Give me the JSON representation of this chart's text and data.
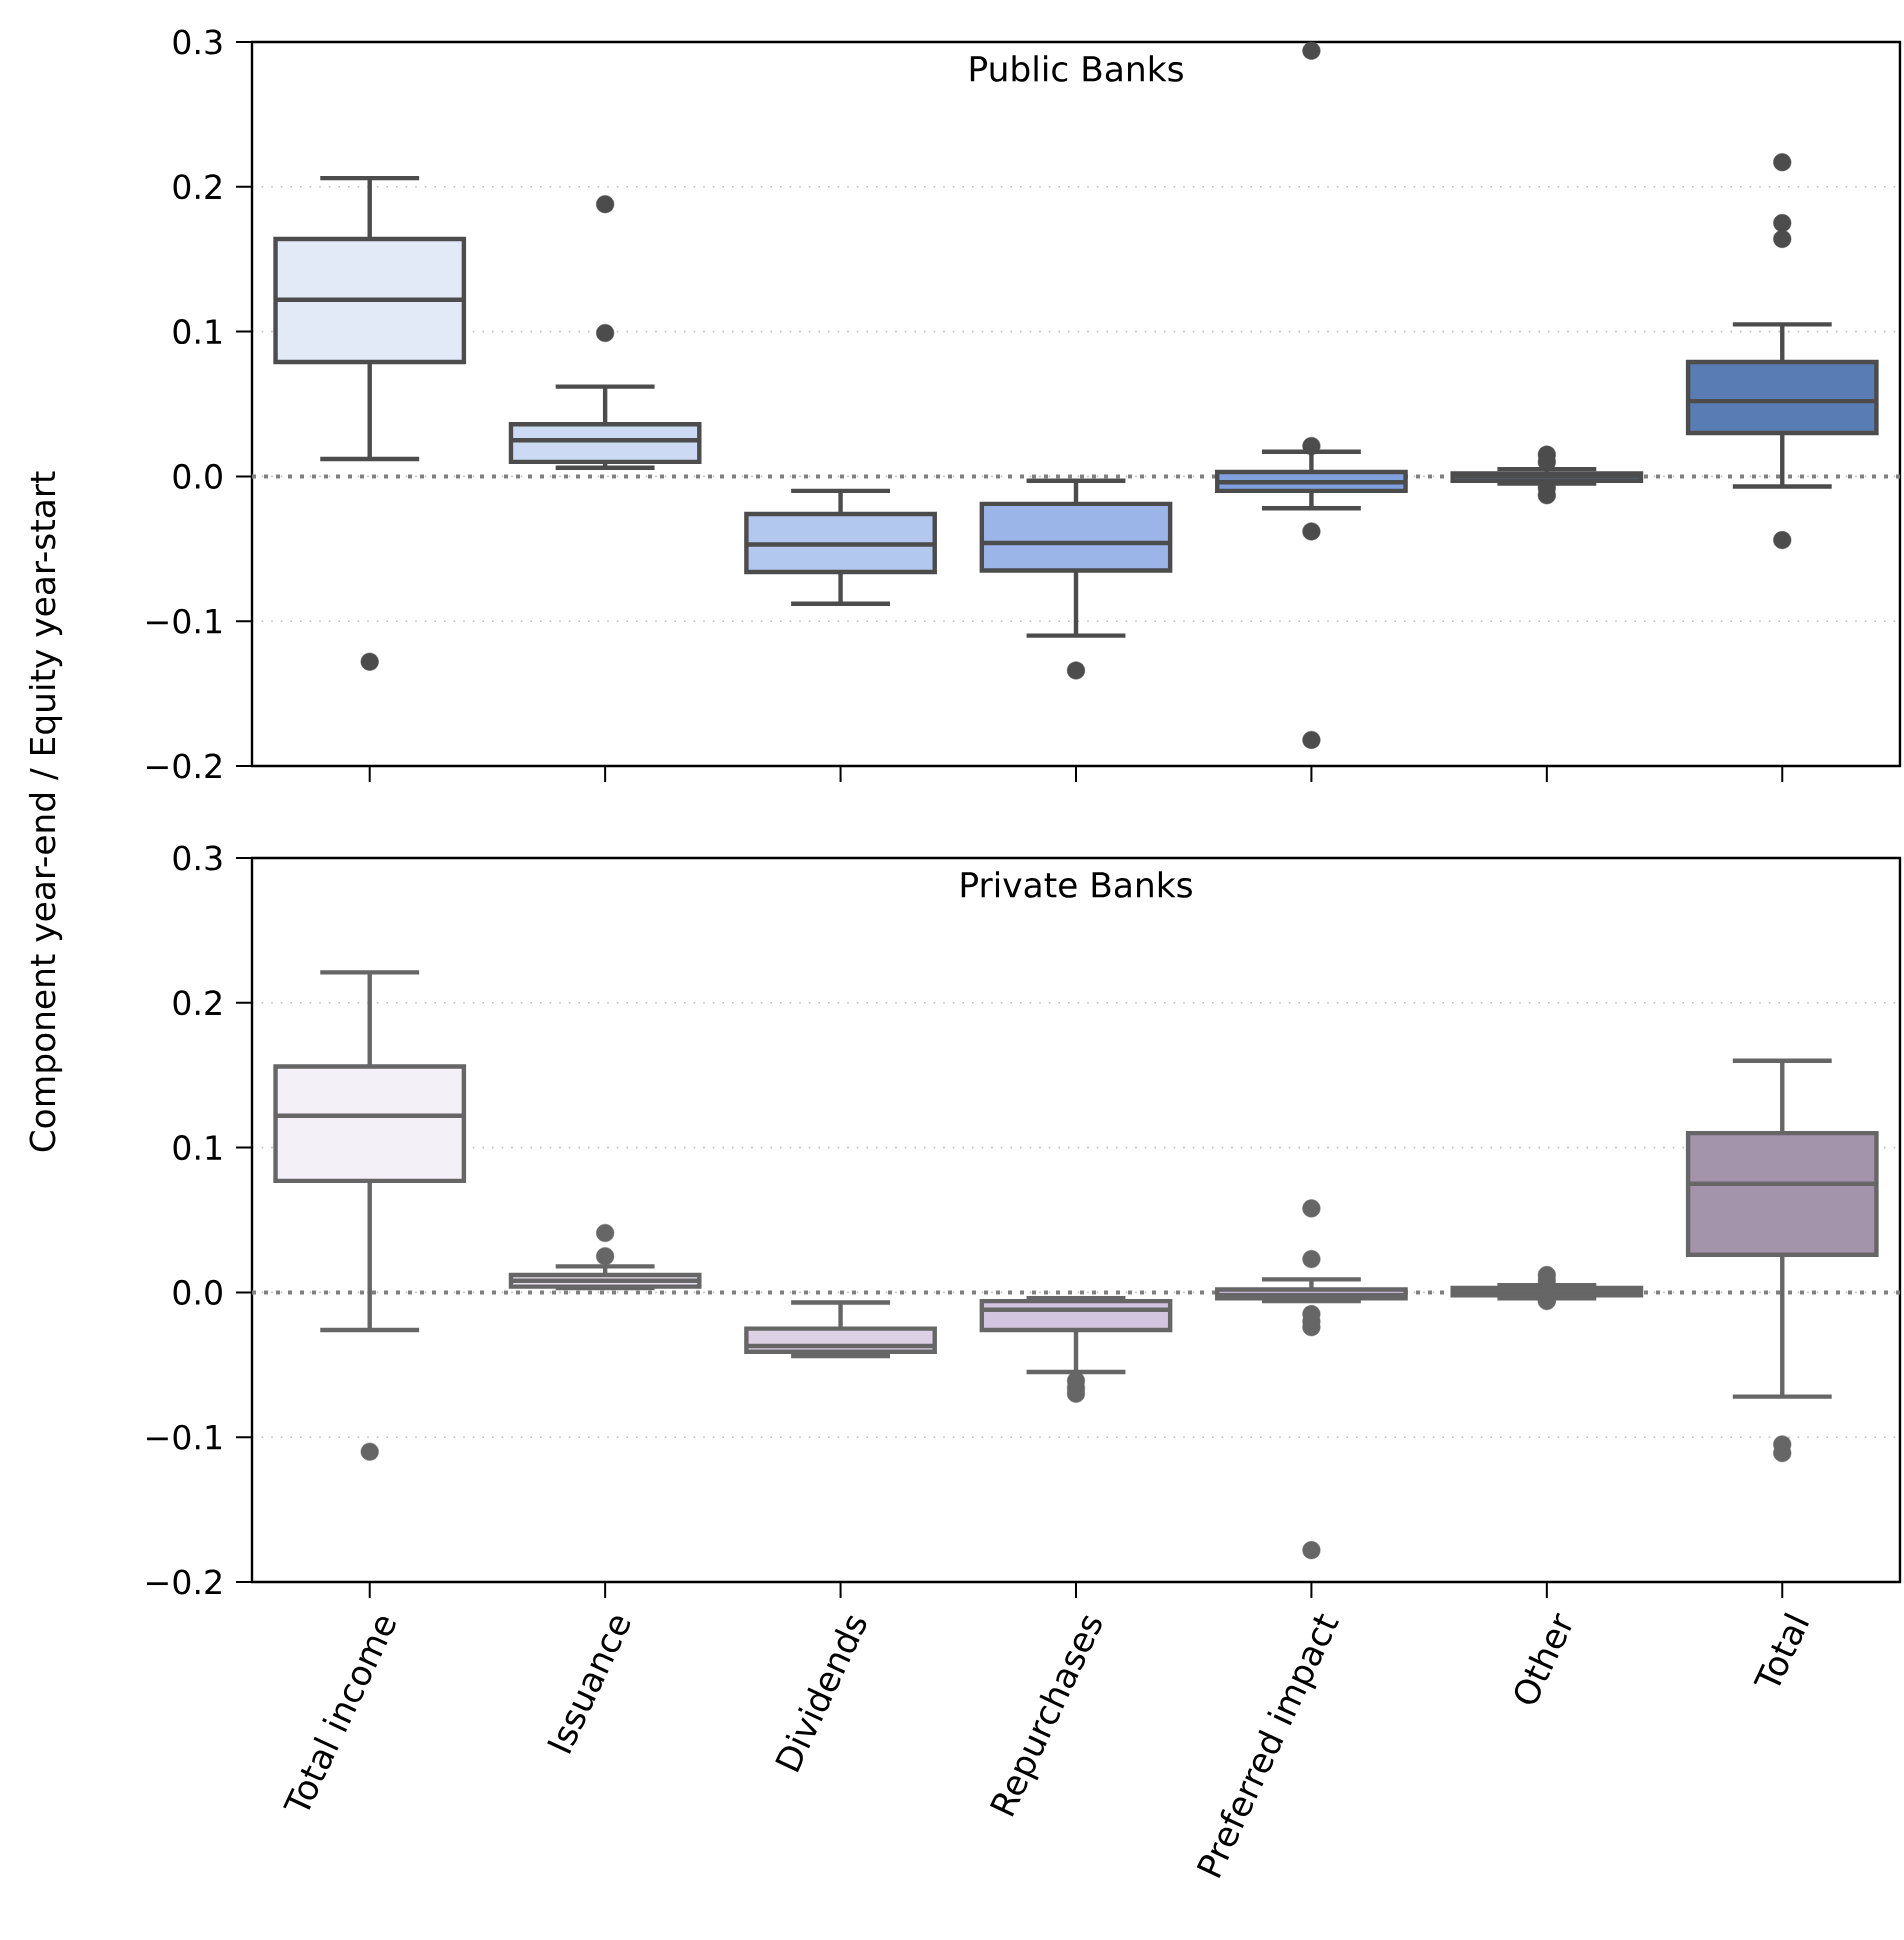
{
  "chart_data": [
    {
      "type": "box",
      "title": "Public Banks",
      "ylabel": "Component year-end / Equity year-start",
      "boxes": [
        {
          "low": 0.012,
          "q1": 0.079,
          "median": 0.122,
          "q3": 0.164,
          "high": 0.206,
          "outliers": [
            -0.128
          ]
        },
        {
          "low": 0.006,
          "q1": 0.01,
          "median": 0.025,
          "q3": 0.036,
          "high": 0.062,
          "outliers": [
            0.099,
            0.188
          ]
        },
        {
          "low": -0.088,
          "q1": -0.066,
          "median": -0.047,
          "q3": -0.026,
          "high": -0.01
        },
        {
          "low": -0.11,
          "q1": -0.065,
          "median": -0.046,
          "q3": -0.019,
          "high": -0.003,
          "outliers": [
            -0.134
          ]
        },
        {
          "low": -0.022,
          "q1": -0.01,
          "median": -0.004,
          "q3": 0.003,
          "high": 0.017,
          "outliers": [
            0.294,
            0.021,
            -0.038,
            -0.182
          ]
        },
        {
          "low": -0.005,
          "q1": -0.003,
          "median": 0.0,
          "q3": 0.002,
          "high": 0.005,
          "outliers": [
            0.015,
            0.01,
            -0.008,
            -0.013
          ]
        },
        {
          "low": -0.007,
          "q1": 0.03,
          "median": 0.052,
          "q3": 0.079,
          "high": 0.105,
          "outliers": [
            0.217,
            0.175,
            0.164,
            -0.044
          ]
        }
      ],
      "colors": [
        "#e2eaf8",
        "#ccdbf3",
        "#b3c8ee",
        "#9bb5e8",
        "#80a1de",
        "#6d90d0",
        "#5a7cb4"
      ],
      "ylim": [
        -0.2,
        0.3
      ],
      "yticks": [
        {
          "value": -0.2,
          "label": "−0.2"
        },
        {
          "value": -0.1,
          "label": "−0.1"
        },
        {
          "value": 0,
          "label": "0.0"
        },
        {
          "value": 0.1,
          "label": "0.1"
        },
        {
          "value": 0.2,
          "label": "0.2"
        },
        {
          "value": 0.3,
          "label": "0.3"
        }
      ],
      "grid": "y",
      "tick_labels": "y",
      "ref_lines": [
        {
          "axis": "y",
          "value": 0,
          "color": "#808080",
          "line_style": "dotted"
        }
      ]
    },
    {
      "type": "box",
      "title": "Private Banks",
      "categories": [
        "Total income",
        "Issuance",
        "Dividends",
        "Repurchases",
        "Preferred impact",
        "Other",
        "Total"
      ],
      "boxes": [
        {
          "low": -0.026,
          "q1": 0.077,
          "median": 0.122,
          "q3": 0.156,
          "high": 0.221,
          "outliers": [
            -0.11
          ]
        },
        {
          "low": 0.003,
          "q1": 0.004,
          "median": 0.008,
          "q3": 0.012,
          "high": 0.018,
          "outliers": [
            0.025,
            0.041
          ]
        },
        {
          "low": -0.044,
          "q1": -0.041,
          "median": -0.037,
          "q3": -0.025,
          "high": -0.007
        },
        {
          "low": -0.055,
          "q1": -0.026,
          "median": -0.012,
          "q3": -0.006,
          "high": -0.004,
          "outliers": [
            -0.061,
            -0.066,
            -0.07
          ]
        },
        {
          "low": -0.006,
          "q1": -0.004,
          "median": -0.002,
          "q3": 0.002,
          "high": 0.009,
          "outliers": [
            0.058,
            0.023,
            -0.015,
            -0.02,
            -0.024,
            -0.178
          ]
        },
        {
          "low": -0.004,
          "q1": -0.002,
          "median": 0.001,
          "q3": 0.003,
          "high": 0.005,
          "outliers": [
            0.012,
            0.008,
            -0.005,
            -0.006
          ]
        },
        {
          "low": -0.072,
          "q1": 0.026,
          "median": 0.075,
          "q3": 0.11,
          "high": 0.16,
          "outliers": [
            -0.105,
            -0.111
          ]
        }
      ],
      "colors": [
        "#f4f0f7",
        "#e8e1ee",
        "#ddd1e6",
        "#d3c5df",
        "#c6b5d4",
        "#b8a5c6",
        "#a394ab"
      ],
      "ylim": [
        -0.2,
        0.3
      ],
      "yticks": [
        {
          "value": -0.2,
          "label": "−0.2"
        },
        {
          "value": -0.1,
          "label": "−0.1"
        },
        {
          "value": 0,
          "label": "0.0"
        },
        {
          "value": 0.1,
          "label": "0.1"
        },
        {
          "value": 0.2,
          "label": "0.2"
        },
        {
          "value": 0.3,
          "label": "0.3"
        }
      ],
      "grid": "y",
      "ref_lines": [
        {
          "axis": "y",
          "value": 0,
          "color": "#808080",
          "line_style": "dotted"
        }
      ]
    }
  ]
}
